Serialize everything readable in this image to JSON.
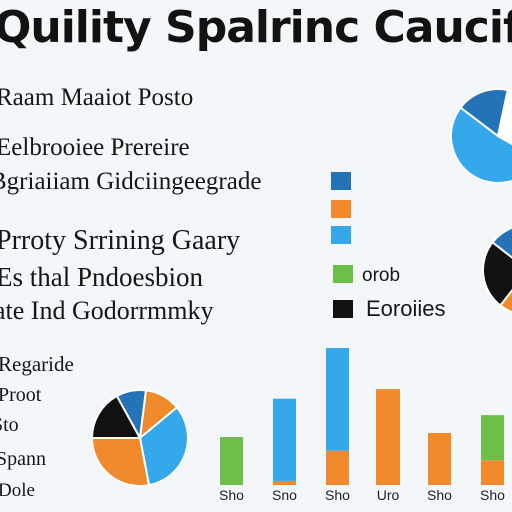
{
  "title": "Quility Spalrinc Caucif",
  "text_lines": [
    "Raam Maaiot Posto",
    "Eelbrooiee Prereire",
    "Bgriaiiam Gidciingeegrade",
    "Prroty Srrining Gaary",
    "Es thal Pndoesbion",
    "ate Ind Godorrmmky",
    "Regaride",
    "Proot",
    "Sto",
    "Spann",
    "Dole"
  ],
  "legend": {
    "items": [
      {
        "label": "",
        "color": "#2472b8"
      },
      {
        "label": "",
        "color": "#f08a2c"
      },
      {
        "label": "",
        "color": "#34a8ea"
      },
      {
        "label": "orob",
        "color": "#6cc04a"
      },
      {
        "label": "Eoroiies",
        "color": "#111111"
      }
    ]
  },
  "colors": {
    "blue": "#2472b8",
    "orange": "#f08a2c",
    "light_blue": "#34a8ea",
    "green": "#6cc04a",
    "black": "#111111"
  },
  "chart_data": [
    {
      "type": "pie",
      "labels": [
        "light blue",
        "dark blue",
        "white"
      ],
      "values": [
        52,
        18,
        30
      ],
      "colors": [
        "#34a8ea",
        "#2472b8",
        "#ffffff"
      ]
    },
    {
      "type": "pie",
      "labels": [
        "orange",
        "black",
        "dark blue",
        "light blue"
      ],
      "values": [
        55,
        25,
        12,
        8
      ],
      "colors": [
        "#f08a2c",
        "#111111",
        "#2472b8",
        "#34a8ea"
      ]
    },
    {
      "type": "pie",
      "labels": [
        "black",
        "dark blue",
        "orange",
        "light blue",
        "orange-2"
      ],
      "values": [
        17,
        10,
        12,
        33,
        28
      ],
      "colors": [
        "#111111",
        "#2472b8",
        "#f08a2c",
        "#34a8ea",
        "#f08a2c"
      ]
    },
    {
      "type": "bar",
      "categories": [
        "Sho",
        "Sno",
        "Sho",
        "Uro",
        "Sho",
        "Sho"
      ],
      "ylim": [
        0,
        100
      ],
      "series": [
        {
          "color": "#6cc04a",
          "values": [
            35,
            0,
            0,
            0,
            0,
            0
          ]
        },
        {
          "color": "#f08a2c",
          "values": [
            0,
            3,
            25,
            70,
            38,
            18
          ]
        },
        {
          "color": "#34a8ea",
          "values": [
            0,
            60,
            75,
            0,
            0,
            0
          ]
        },
        {
          "color": "#6cc04a",
          "values": [
            0,
            0,
            0,
            0,
            0,
            33
          ]
        }
      ]
    }
  ]
}
